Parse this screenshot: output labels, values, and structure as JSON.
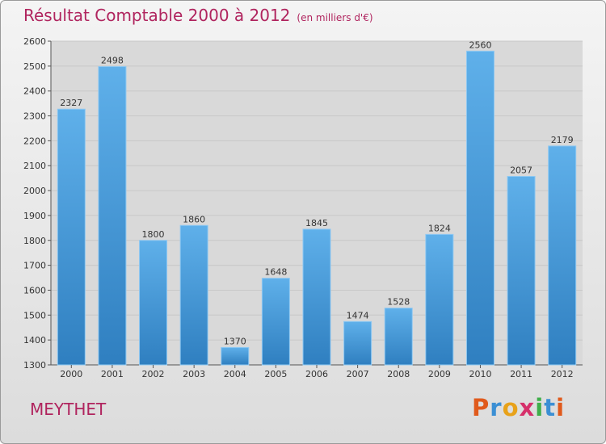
{
  "chart_data": {
    "type": "bar",
    "title": "Résultat Comptable 2000 à 2012",
    "subtitle": "(en milliers d'€)",
    "categories": [
      "2000",
      "2001",
      "2002",
      "2003",
      "2004",
      "2005",
      "2006",
      "2007",
      "2008",
      "2009",
      "2010",
      "2011",
      "2012"
    ],
    "values": [
      2327,
      2498,
      1800,
      1860,
      1370,
      1648,
      1845,
      1474,
      1528,
      1824,
      2560,
      2057,
      2179
    ],
    "ylim": [
      1300,
      2600
    ],
    "yticks": [
      1300,
      1400,
      1500,
      1600,
      1700,
      1800,
      1900,
      2000,
      2100,
      2200,
      2300,
      2400,
      2500,
      2600
    ],
    "grid": true,
    "xlabel": "",
    "ylabel": ""
  },
  "footer": {
    "commune": "MEYTHET",
    "brand_letters": [
      {
        "char": "P",
        "color": "#e05a1c"
      },
      {
        "char": "r",
        "color": "#3b8fd4"
      },
      {
        "char": "o",
        "color": "#e8a21a"
      },
      {
        "char": "x",
        "color": "#d6306b"
      },
      {
        "char": "i",
        "color": "#3fae49"
      },
      {
        "char": "t",
        "color": "#3b8fd4"
      },
      {
        "char": "i",
        "color": "#e05a1c"
      }
    ]
  },
  "colors": {
    "bar_top": "#5fb0ea",
    "bar_bottom": "#2f7fc0",
    "title": "#b0245e",
    "grid": "#c8c8c8",
    "plot_bg": "#d9d9d9"
  }
}
